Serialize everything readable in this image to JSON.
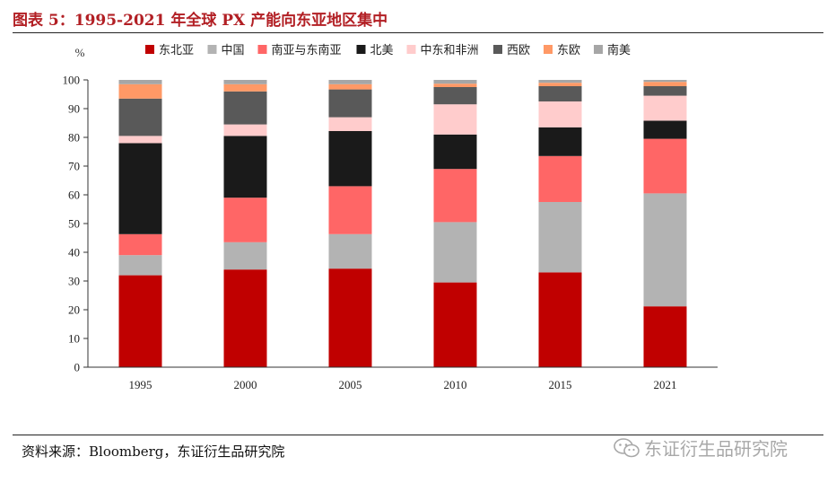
{
  "title": "图表 5：1995-2021 年全球 PX 产能向东亚地区集中",
  "source": "资料来源：Bloomberg，东证衍生品研究院",
  "watermark": "东证衍生品研究院",
  "colors": {
    "title": "#b21f24",
    "东北亚": "#c00000",
    "中国": "#b3b3b3",
    "南亚与东南亚": "#ff6666",
    "北美": "#1a1a1a",
    "中东和非洲": "#ffcccc",
    "西欧": "#595959",
    "东欧": "#ff9966",
    "南美": "#a6a6a6"
  },
  "chart_data": {
    "type": "bar",
    "stacked": true,
    "categories": [
      "1995",
      "2000",
      "2005",
      "2010",
      "2015",
      "2021"
    ],
    "ylabel": "%",
    "ylim": [
      0,
      100
    ],
    "yticks": [
      0,
      10,
      20,
      30,
      40,
      50,
      60,
      70,
      80,
      90,
      100
    ],
    "legend_position": "top",
    "grid": false,
    "series": [
      {
        "name": "东北亚",
        "color": "#c00000",
        "values": [
          32,
          34,
          34.3,
          29.5,
          33,
          21.2
        ]
      },
      {
        "name": "中国",
        "color": "#b3b3b3",
        "values": [
          7,
          9.5,
          12,
          21,
          24.5,
          39.3
        ]
      },
      {
        "name": "南亚与东南亚",
        "color": "#ff6666",
        "values": [
          7.3,
          15.5,
          16.7,
          18.5,
          16,
          19
        ]
      },
      {
        "name": "北美",
        "color": "#1a1a1a",
        "values": [
          31.7,
          21.5,
          19.2,
          12,
          10,
          6.3
        ]
      },
      {
        "name": "中东和非洲",
        "color": "#ffcccc",
        "values": [
          2.5,
          4,
          4.8,
          10.5,
          9,
          8.7
        ]
      },
      {
        "name": "西欧",
        "color": "#595959",
        "values": [
          13,
          11.5,
          9.7,
          6,
          5.3,
          3.3
        ]
      },
      {
        "name": "东欧",
        "color": "#ff9966",
        "values": [
          5,
          2.5,
          1.8,
          1.2,
          1.2,
          1.5
        ]
      },
      {
        "name": "南美",
        "color": "#a6a6a6",
        "values": [
          1.5,
          1.5,
          1.5,
          1.3,
          1,
          0.7
        ]
      }
    ]
  }
}
